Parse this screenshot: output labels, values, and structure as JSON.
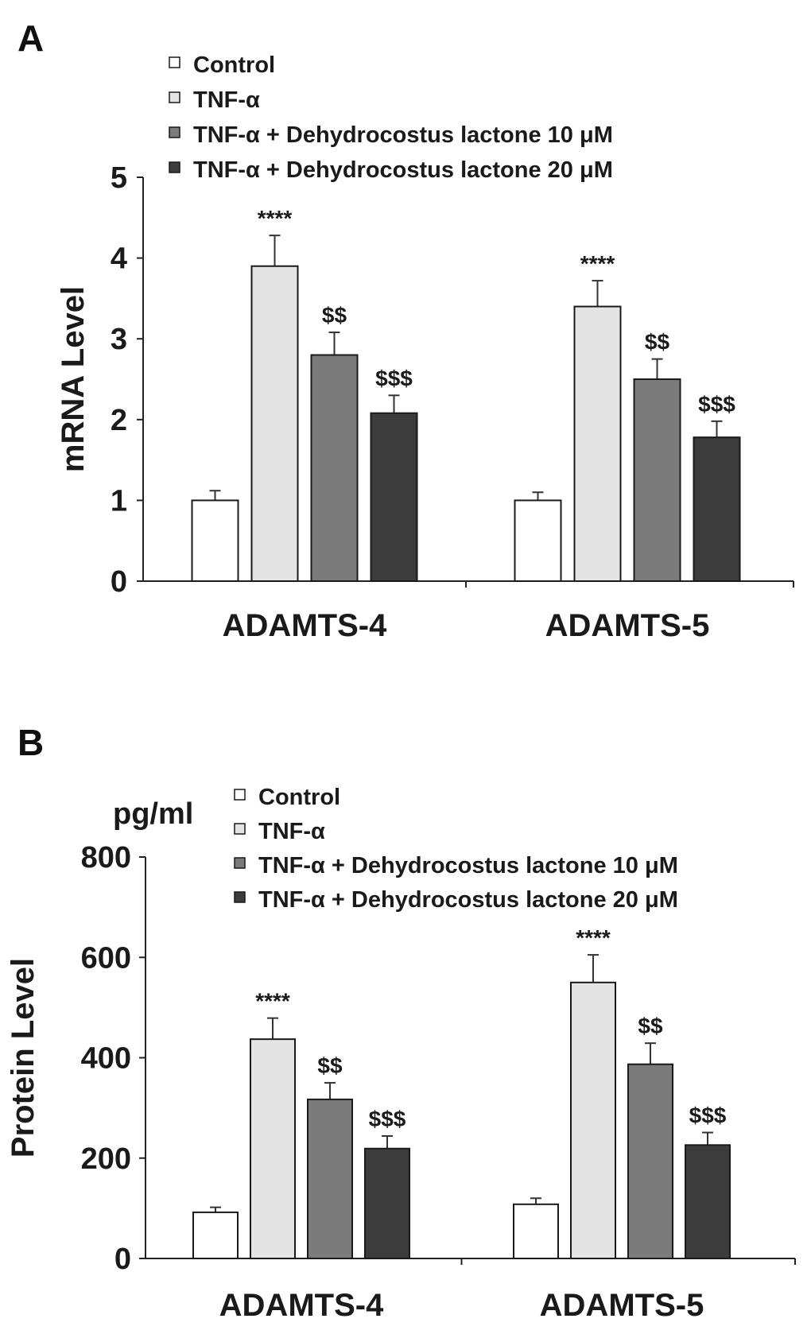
{
  "chart_data": [
    {
      "panel": "A",
      "type": "bar",
      "ylabel": "mRNA Level",
      "unit": "",
      "ylim": [
        0,
        5
      ],
      "yticks": [
        0,
        1,
        2,
        3,
        4,
        5
      ],
      "categories": [
        "ADAMTS-4",
        "ADAMTS-5"
      ],
      "legend_placement": "top",
      "series": [
        {
          "name": "Control",
          "color": "#ffffff",
          "values": [
            1.0,
            1.0
          ],
          "errors": [
            0.12,
            0.1
          ],
          "annotations": [
            "",
            ""
          ]
        },
        {
          "name": "TNF-α",
          "color": "#e4e4e4",
          "values": [
            3.9,
            3.4
          ],
          "errors": [
            0.38,
            0.32
          ],
          "annotations": [
            "****",
            "****"
          ]
        },
        {
          "name": "TNF-α + Dehydrocostus lactone 10 μM",
          "color": "#7b7b7b",
          "values": [
            2.8,
            2.5
          ],
          "errors": [
            0.28,
            0.25
          ],
          "annotations": [
            "$$",
            "$$"
          ]
        },
        {
          "name": "TNF-α + Dehydrocostus lactone 20 μM",
          "color": "#3c3c3c",
          "values": [
            2.08,
            1.78
          ],
          "errors": [
            0.22,
            0.2
          ],
          "annotations": [
            "$$$",
            "$$$"
          ]
        }
      ]
    },
    {
      "panel": "B",
      "type": "bar",
      "ylabel": "Protein Level",
      "unit": "pg/ml",
      "ylim": [
        0,
        800
      ],
      "yticks": [
        0,
        200,
        400,
        600,
        800
      ],
      "categories": [
        "ADAMTS-4",
        "ADAMTS-5"
      ],
      "legend_placement": "top",
      "series": [
        {
          "name": "Control",
          "color": "#ffffff",
          "values": [
            92,
            108
          ],
          "errors": [
            10,
            12
          ],
          "annotations": [
            "",
            ""
          ]
        },
        {
          "name": "TNF-α",
          "color": "#e4e4e4",
          "values": [
            437,
            550
          ],
          "errors": [
            42,
            55
          ],
          "annotations": [
            "****",
            "****"
          ]
        },
        {
          "name": "TNF-α + Dehydrocostus lactone 10 μM",
          "color": "#7b7b7b",
          "values": [
            317,
            387
          ],
          "errors": [
            33,
            42
          ],
          "annotations": [
            "$$",
            "$$"
          ]
        },
        {
          "name": "TNF-α + Dehydrocostus lactone 20 μM",
          "color": "#3c3c3c",
          "values": [
            219,
            226
          ],
          "errors": [
            25,
            25
          ],
          "annotations": [
            "$$$",
            "$$$"
          ]
        }
      ]
    }
  ]
}
